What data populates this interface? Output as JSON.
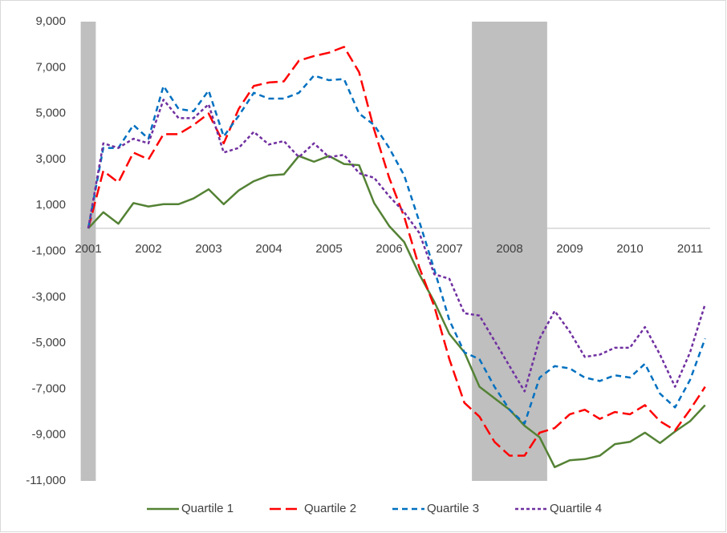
{
  "chart_data": {
    "type": "line",
    "categories": [
      "2001",
      null,
      null,
      null,
      "2002",
      null,
      null,
      null,
      "2003",
      null,
      null,
      null,
      "2004",
      null,
      null,
      null,
      "2005",
      null,
      null,
      null,
      "2006",
      null,
      null,
      null,
      "2007",
      null,
      null,
      null,
      "2008",
      null,
      null,
      null,
      "2009",
      null,
      null,
      null,
      "2010",
      null,
      null,
      null,
      "2011",
      null
    ],
    "series": [
      {
        "name": "Quartile 1",
        "color": "#548235",
        "dash": "none",
        "values": [
          0,
          700,
          200,
          1100,
          950,
          1050,
          1050,
          1300,
          1700,
          1050,
          1650,
          2050,
          2300,
          2350,
          3150,
          2900,
          3150,
          2800,
          2750,
          1100,
          100,
          -600,
          -2000,
          -3200,
          -4600,
          -5400,
          -6900,
          -7400,
          -7900,
          -8600,
          -9100,
          -10400,
          -10100,
          -10050,
          -9900,
          -9400,
          -9300,
          -8900,
          -9350,
          -8850,
          -8400,
          -7700
        ]
      },
      {
        "name": "Quartile 2",
        "color": "#ff0000",
        "dash": "14 6",
        "values": [
          0,
          2500,
          2000,
          3300,
          3000,
          4100,
          4100,
          4500,
          5000,
          3700,
          5200,
          6200,
          6350,
          6400,
          7300,
          7500,
          7650,
          7900,
          6800,
          4300,
          2200,
          500,
          -1700,
          -3400,
          -5700,
          -7600,
          -8200,
          -9300,
          -9900,
          -9900,
          -8900,
          -8700,
          -8100,
          -7900,
          -8300,
          -8000,
          -8100,
          -7700,
          -8400,
          -8800,
          -7900,
          -6900
        ]
      },
      {
        "name": "Quartile 3",
        "color": "#0070c0",
        "dash": "7 5",
        "values": [
          0,
          3500,
          3500,
          4500,
          3900,
          6200,
          5200,
          5100,
          6000,
          4000,
          4900,
          5900,
          5650,
          5650,
          5900,
          6650,
          6450,
          6500,
          5000,
          4500,
          3500,
          2300,
          300,
          -1800,
          -4000,
          -5400,
          -5700,
          -6900,
          -7900,
          -8500,
          -6500,
          -6000,
          -6100,
          -6500,
          -6650,
          -6400,
          -6500,
          -5900,
          -7200,
          -7800,
          -6600,
          -4800
        ]
      },
      {
        "name": "Quartile 4",
        "color": "#7030a0",
        "dash": "4 3",
        "values": [
          0,
          3700,
          3500,
          3900,
          3700,
          5600,
          4800,
          4800,
          5400,
          3300,
          3500,
          4200,
          3650,
          3800,
          3100,
          3700,
          3100,
          3200,
          2400,
          2200,
          1400,
          700,
          -200,
          -2000,
          -2200,
          -3700,
          -3800,
          -4900,
          -6000,
          -7100,
          -4800,
          -3600,
          -4500,
          -5600,
          -5500,
          -5200,
          -5200,
          -4300,
          -5500,
          -6900,
          -5400,
          -3300
        ]
      }
    ],
    "shaded_ranges": [
      [
        -0.5,
        0.5
      ],
      [
        25.5,
        30.5
      ]
    ],
    "shade_color": "#bfbfbf",
    "ylim": [
      -11000,
      9000
    ],
    "yticks": [
      {
        "value": -11000,
        "label": "-11,000"
      },
      {
        "value": -9000,
        "label": "-9,000"
      },
      {
        "value": -7000,
        "label": "-7,000"
      },
      {
        "value": -5000,
        "label": "-5,000"
      },
      {
        "value": -3000,
        "label": "-3,000"
      },
      {
        "value": -1000,
        "label": "-1,000"
      },
      {
        "value": 1000,
        "label": "1,000"
      },
      {
        "value": 3000,
        "label": "3,000"
      },
      {
        "value": 5000,
        "label": "5,000"
      },
      {
        "value": 7000,
        "label": "7,000"
      },
      {
        "value": 9000,
        "label": "9,000"
      }
    ],
    "grid": false,
    "legend": "bottom"
  }
}
